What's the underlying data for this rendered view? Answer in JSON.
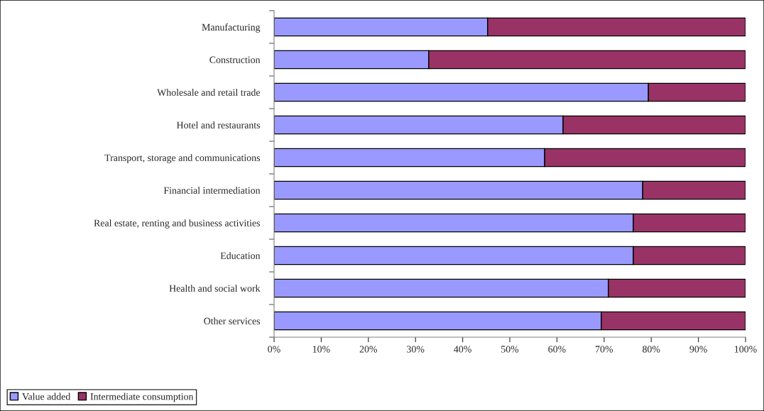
{
  "chart_data": {
    "type": "bar",
    "orientation": "horizontal",
    "stacked": true,
    "categories": [
      "Manufacturing",
      "Construction",
      "Wholesale and retail trade",
      "Hotel and restaurants",
      "Transport, storage and communications",
      "Financial intermediation",
      "Real estate, renting and business activities",
      "Education",
      "Health and social work",
      "Other services"
    ],
    "series": [
      {
        "name": "Value added",
        "color": "#9999ff",
        "values": [
          45.3,
          32.8,
          79.4,
          61.3,
          57.4,
          78.2,
          76.2,
          76.2,
          70.9,
          69.4
        ]
      },
      {
        "name": "Intermediate consumption",
        "color": "#993366",
        "values": [
          54.7,
          67.2,
          20.6,
          38.7,
          42.6,
          21.8,
          23.8,
          23.8,
          29.1,
          30.6
        ]
      }
    ],
    "xlim": [
      0,
      100
    ],
    "xticks": [
      {
        "value": 0,
        "label": "0%"
      },
      {
        "value": 10,
        "label": "10%"
      },
      {
        "value": 20,
        "label": "20%"
      },
      {
        "value": 30,
        "label": "30%"
      },
      {
        "value": 40,
        "label": "40%"
      },
      {
        "value": 50,
        "label": "50%"
      },
      {
        "value": 60,
        "label": "60%"
      },
      {
        "value": 70,
        "label": "70%"
      },
      {
        "value": 80,
        "label": "80%"
      },
      {
        "value": 90,
        "label": "90%"
      },
      {
        "value": 100,
        "label": "100%"
      }
    ],
    "grid": false,
    "legend": "bottom left"
  }
}
